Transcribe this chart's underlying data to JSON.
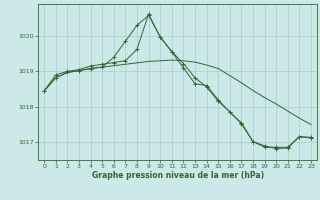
{
  "background_color": "#cce8e8",
  "grid_color": "#aacccc",
  "line_color": "#336633",
  "marker_color": "#336633",
  "title": "Graphe pression niveau de la mer (hPa)",
  "xlim": [
    -0.5,
    23.5
  ],
  "ylim": [
    1016.5,
    1020.9
  ],
  "yticks": [
    1017,
    1018,
    1019,
    1020
  ],
  "xticks": [
    0,
    1,
    2,
    3,
    4,
    5,
    6,
    7,
    8,
    9,
    10,
    11,
    12,
    13,
    14,
    15,
    16,
    17,
    18,
    19,
    20,
    21,
    22,
    23
  ],
  "series1_x": [
    0,
    1,
    2,
    3,
    4,
    5,
    6,
    7,
    8,
    9,
    10,
    11,
    12,
    13,
    14,
    15,
    16,
    17,
    18,
    19,
    20,
    21,
    22,
    23
  ],
  "series1_y": [
    1018.45,
    1018.82,
    1018.97,
    1019.02,
    1019.08,
    1019.12,
    1019.16,
    1019.2,
    1019.24,
    1019.28,
    1019.3,
    1019.32,
    1019.3,
    1019.26,
    1019.18,
    1019.08,
    1018.88,
    1018.68,
    1018.46,
    1018.26,
    1018.08,
    1017.88,
    1017.68,
    1017.5
  ],
  "series2_x": [
    0,
    1,
    2,
    3,
    4,
    5,
    6,
    7,
    8,
    9,
    10,
    11,
    12,
    13,
    14,
    15,
    16,
    17,
    18,
    19,
    20,
    21,
    22,
    23
  ],
  "series2_y": [
    1018.45,
    1018.82,
    1018.97,
    1019.02,
    1019.08,
    1019.12,
    1019.4,
    1019.85,
    1020.3,
    1020.58,
    1019.98,
    1019.55,
    1019.1,
    1018.65,
    1018.6,
    1018.2,
    1017.85,
    1017.55,
    1017.02,
    1016.9,
    1016.82,
    1016.84,
    1017.16,
    1017.14
  ],
  "series3_x": [
    0,
    1,
    2,
    3,
    4,
    5,
    6,
    7,
    8,
    9,
    10,
    11,
    12,
    13,
    14,
    15,
    16,
    17,
    18,
    19,
    20,
    21,
    22,
    23
  ],
  "series3_y": [
    1018.45,
    1018.9,
    1019.0,
    1019.05,
    1019.15,
    1019.2,
    1019.25,
    1019.3,
    1019.62,
    1020.62,
    1019.96,
    1019.56,
    1019.22,
    1018.82,
    1018.56,
    1018.16,
    1017.86,
    1017.52,
    1017.02,
    1016.86,
    1016.86,
    1016.86,
    1017.16,
    1017.12
  ]
}
